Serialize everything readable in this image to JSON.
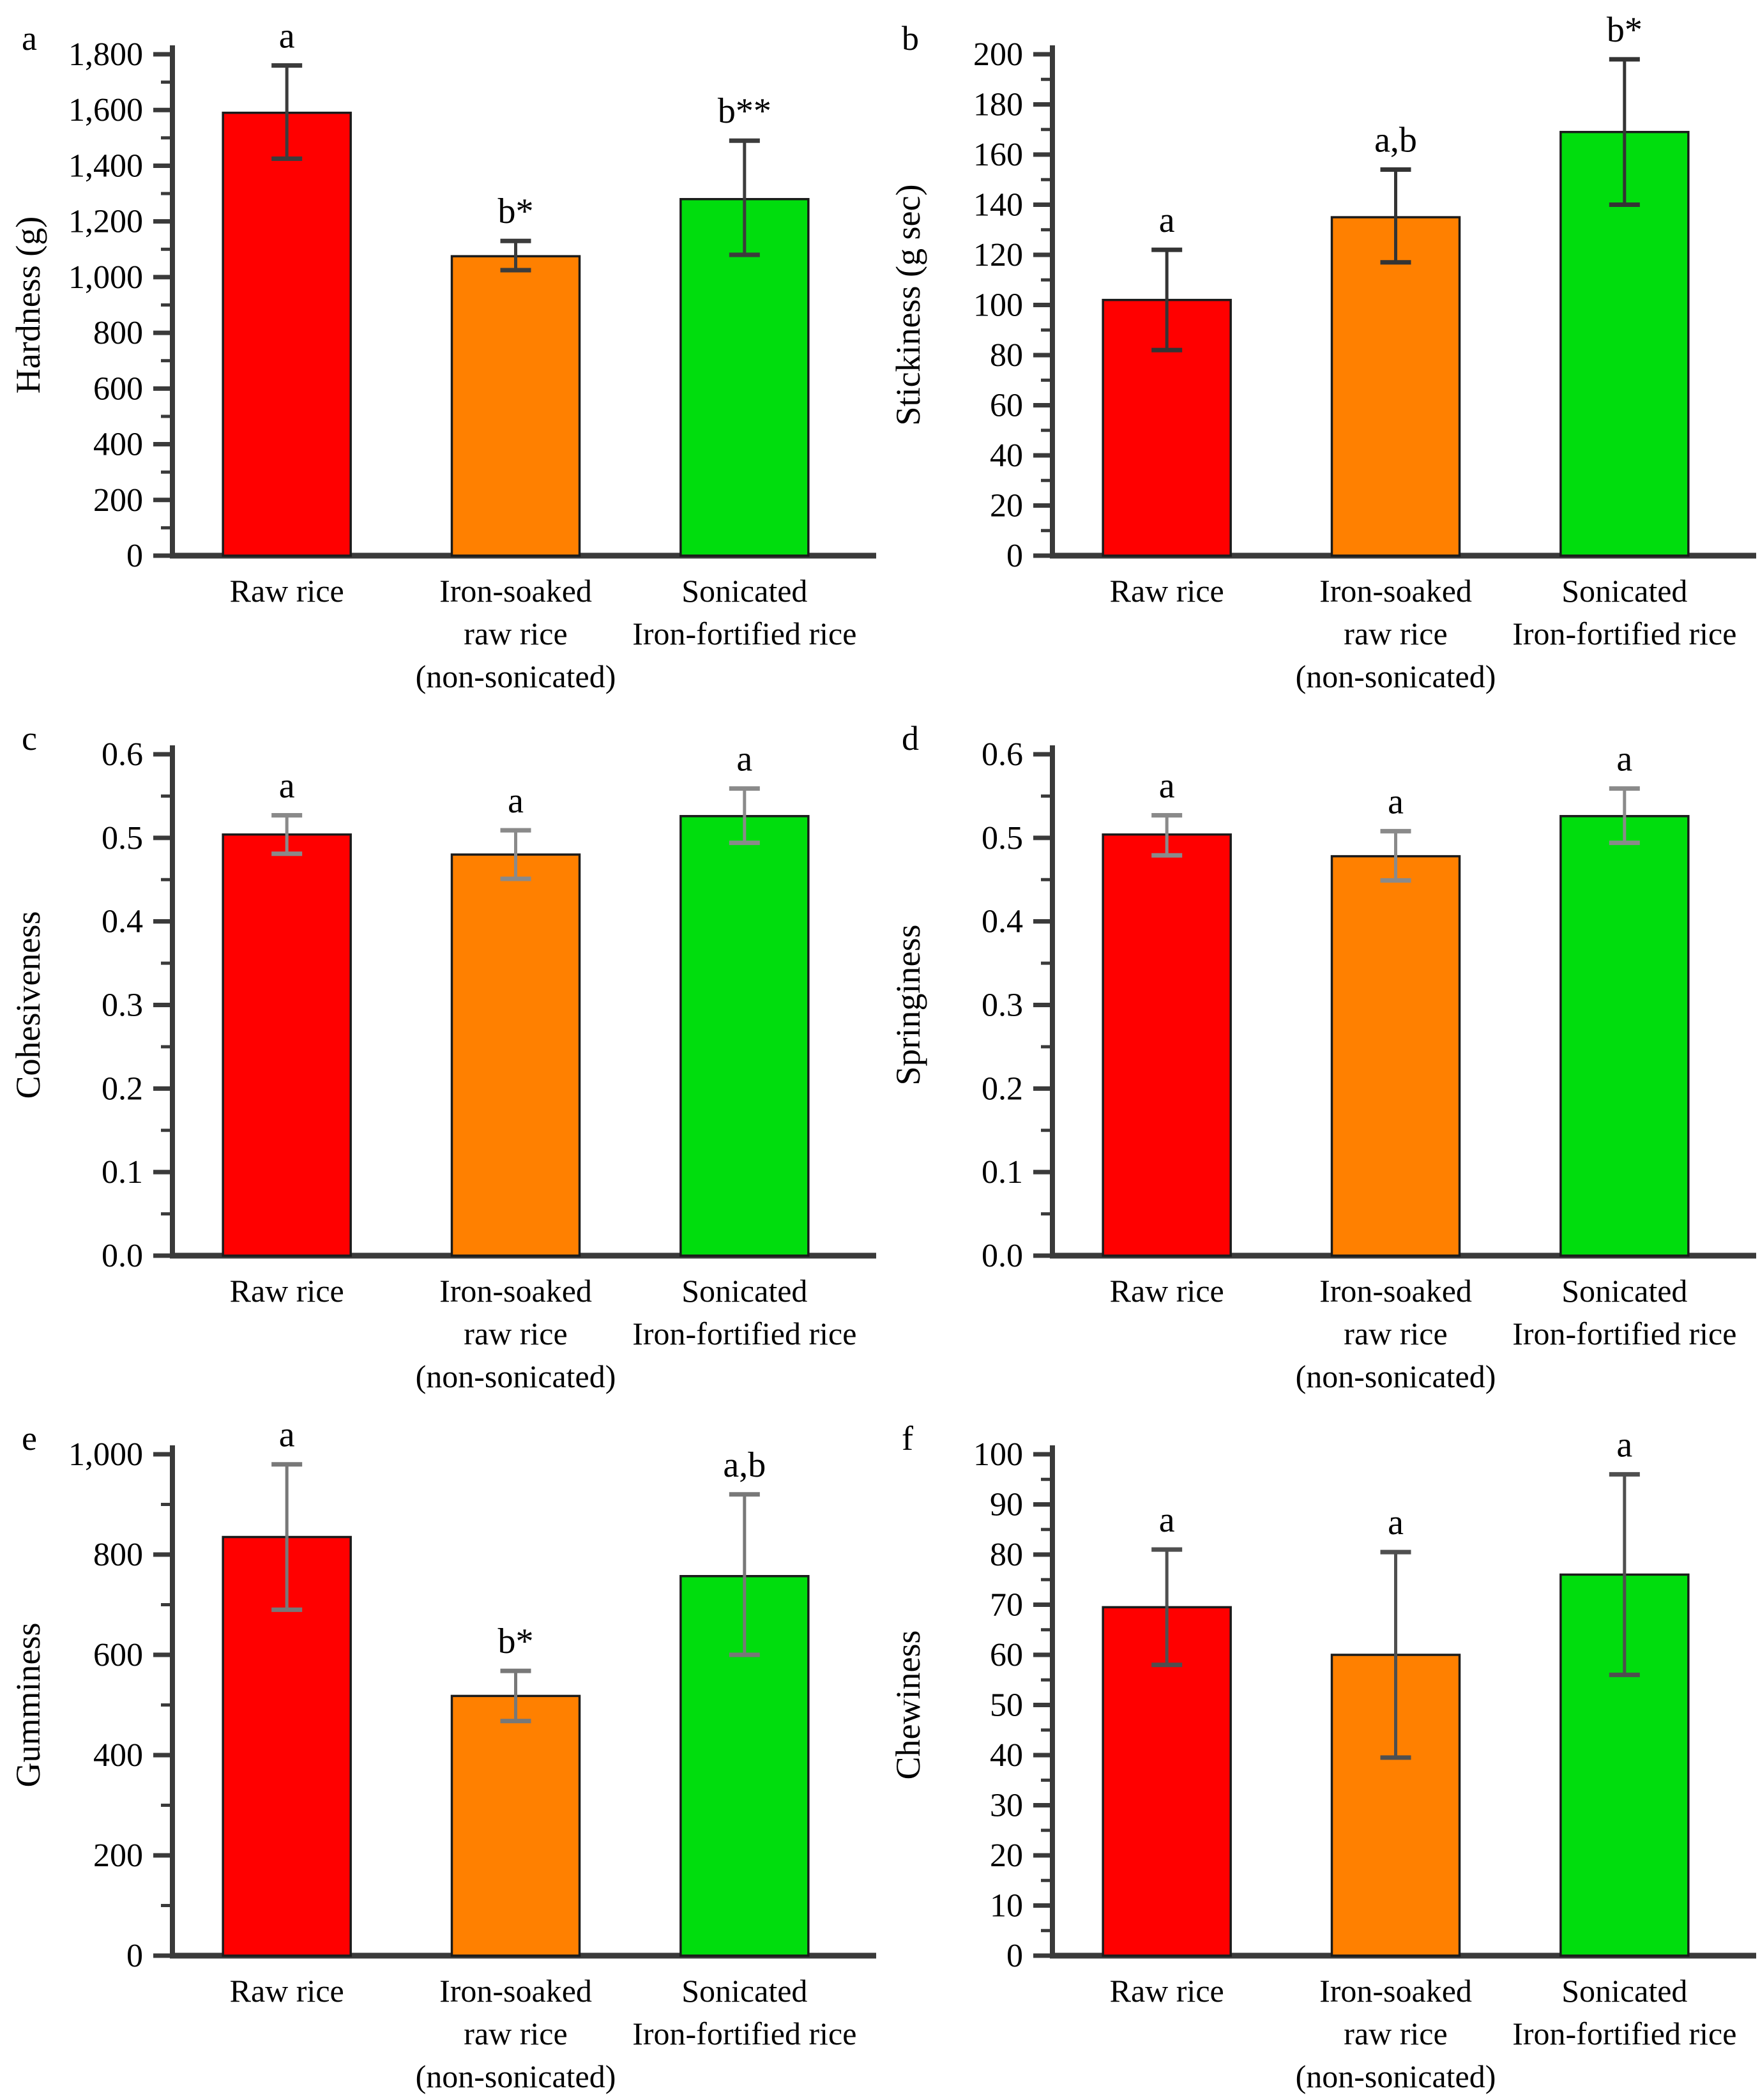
{
  "figure_title": "",
  "categories": [
    "Raw rice",
    "Iron-soaked raw rice (non-sonicated)",
    "Sonicated Iron-fortified rice"
  ],
  "category_label_lines": [
    [
      "Raw rice"
    ],
    [
      "Iron-soaked",
      "raw rice",
      "(non-sonicated)"
    ],
    [
      "Sonicated",
      "Iron-fortified rice"
    ]
  ],
  "bar_colors": [
    "#ff0000",
    "#ff8000",
    "#00dd0d"
  ],
  "bar_border_color": "#1a1a1a",
  "axis_color": "#3a3a3a",
  "text_color": "#000000",
  "chart_data": [
    {
      "type": "bar",
      "panel_label": "a",
      "ylabel": "Hardness (g)",
      "ylim": [
        0,
        1800
      ],
      "ytick_major": 200,
      "ytick_minor": 100,
      "ytick_format": "thousands",
      "grid": "off",
      "legend": "none",
      "categories": [
        "Raw rice",
        "Iron-soaked raw rice (non-sonicated)",
        "Sonicated Iron-fortified rice"
      ],
      "values": [
        1590,
        1075,
        1280
      ],
      "error_low": [
        1425,
        1025,
        1080
      ],
      "error_high": [
        1760,
        1130,
        1490
      ],
      "sig_labels": [
        "a",
        "b*",
        "b**"
      ],
      "error_color": "#3c3c3c"
    },
    {
      "type": "bar",
      "panel_label": "b",
      "ylabel": "Stickiness (g sec)",
      "ylim": [
        0,
        200
      ],
      "ytick_major": 20,
      "ytick_minor": 10,
      "ytick_format": "int",
      "grid": "off",
      "legend": "none",
      "categories": [
        "Raw rice",
        "Iron-soaked raw rice (non-sonicated)",
        "Sonicated Iron-fortified rice"
      ],
      "values": [
        102,
        135,
        169
      ],
      "error_low": [
        82,
        117,
        140
      ],
      "error_high": [
        122,
        154,
        198
      ],
      "sig_labels": [
        "a",
        "a,b",
        "b*"
      ],
      "error_color": "#343434"
    },
    {
      "type": "bar",
      "panel_label": "c",
      "ylabel": "Cohesiveness",
      "ylim": [
        0,
        0.6
      ],
      "ytick_major": 0.1,
      "ytick_minor": 0.05,
      "ytick_format": "dec1",
      "grid": "off",
      "legend": "none",
      "categories": [
        "Raw rice",
        "Iron-soaked raw rice (non-sonicated)",
        "Sonicated Iron-fortified rice"
      ],
      "values": [
        0.504,
        0.48,
        0.526
      ],
      "error_low": [
        0.481,
        0.451,
        0.494
      ],
      "error_high": [
        0.527,
        0.509,
        0.559
      ],
      "sig_labels": [
        "a",
        "a",
        "a"
      ],
      "error_color": "#8a8a8a"
    },
    {
      "type": "bar",
      "panel_label": "d",
      "ylabel": "Springiness",
      "ylim": [
        0,
        0.6
      ],
      "ytick_major": 0.1,
      "ytick_minor": 0.05,
      "ytick_format": "dec1",
      "grid": "off",
      "legend": "none",
      "categories": [
        "Raw rice",
        "Iron-soaked raw rice (non-sonicated)",
        "Sonicated Iron-fortified rice"
      ],
      "values": [
        0.504,
        0.478,
        0.526
      ],
      "error_low": [
        0.479,
        0.449,
        0.494
      ],
      "error_high": [
        0.527,
        0.508,
        0.559
      ],
      "sig_labels": [
        "a",
        "a",
        "a"
      ],
      "error_color": "#8a8a8a"
    },
    {
      "type": "bar",
      "panel_label": "e",
      "ylabel": "Gumminess",
      "ylim": [
        0,
        1000
      ],
      "ytick_major": 200,
      "ytick_minor": 100,
      "ytick_format": "thousands",
      "grid": "off",
      "legend": "none",
      "categories": [
        "Raw rice",
        "Iron-soaked raw rice (non-sonicated)",
        "Sonicated Iron-fortified rice"
      ],
      "values": [
        835,
        518,
        757
      ],
      "error_low": [
        690,
        468,
        600
      ],
      "error_high": [
        980,
        568,
        920
      ],
      "sig_labels": [
        "a",
        "b*",
        "a,b"
      ],
      "error_color": "#787878"
    },
    {
      "type": "bar",
      "panel_label": "f",
      "ylabel": "Chewiness",
      "ylim": [
        0,
        100
      ],
      "ytick_major": 10,
      "ytick_minor": 5,
      "ytick_format": "int",
      "grid": "off",
      "legend": "none",
      "categories": [
        "Raw rice",
        "Iron-soaked raw rice (non-sonicated)",
        "Sonicated Iron-fortified rice"
      ],
      "values": [
        69.5,
        60,
        76
      ],
      "error_low": [
        58,
        39.5,
        56
      ],
      "error_high": [
        81,
        80.5,
        96
      ],
      "sig_labels": [
        "a",
        "a",
        "a"
      ],
      "error_color": "#4f4f4f"
    }
  ]
}
